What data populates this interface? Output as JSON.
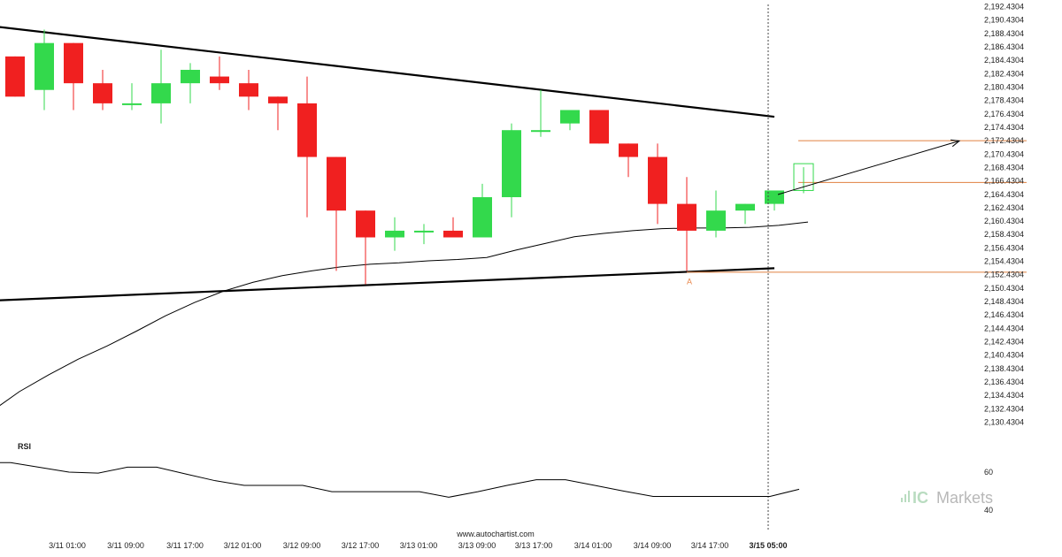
{
  "chart_data": {
    "type": "candlestick",
    "price_axis": {
      "ylim": [
        2130.4304,
        2192.4304
      ],
      "tick_labels": [
        "2,192.4304",
        "2,190.4304",
        "2,188.4304",
        "2,186.4304",
        "2,184.4304",
        "2,182.4304",
        "2,180.4304",
        "2,178.4304",
        "2,176.4304",
        "2,174.4304",
        "2,172.4304",
        "2,170.4304",
        "2,168.4304",
        "2,166.4304",
        "2,164.4304",
        "2,162.4304",
        "2,160.4304",
        "2,158.4304",
        "2,156.4304",
        "2,154.4304",
        "2,152.4304",
        "2,150.4304",
        "2,148.4304",
        "2,146.4304",
        "2,144.4304",
        "2,142.4304",
        "2,140.4304",
        "2,138.4304",
        "2,136.4304",
        "2,134.4304",
        "2,132.4304",
        "2,130.4304"
      ]
    },
    "time_axis": {
      "tick_labels": [
        "3/11 01:00",
        "3/11 09:00",
        "3/11 17:00",
        "3/12 01:00",
        "3/12 09:00",
        "3/12 17:00",
        "3/13 01:00",
        "3/13 09:00",
        "3/13 17:00",
        "3/14 01:00",
        "3/14 09:00",
        "3/14 17:00",
        "3/15 05:00"
      ],
      "highlighted_label": "3/15 05:00"
    },
    "candles": [
      {
        "t": 0,
        "o": 2185,
        "h": 2185,
        "l": 2179,
        "c": 2179
      },
      {
        "t": 1,
        "o": 2180,
        "h": 2189,
        "l": 2177,
        "c": 2187
      },
      {
        "t": 2,
        "o": 2187,
        "h": 2187,
        "l": 2177,
        "c": 2181
      },
      {
        "t": 3,
        "o": 2181,
        "h": 2183,
        "l": 2177,
        "c": 2178
      },
      {
        "t": 4,
        "o": 2178,
        "h": 2181,
        "l": 2177,
        "c": 2178
      },
      {
        "t": 5,
        "o": 2178,
        "h": 2186,
        "l": 2175,
        "c": 2181
      },
      {
        "t": 6,
        "o": 2181,
        "h": 2184,
        "l": 2178,
        "c": 2183
      },
      {
        "t": 7,
        "o": 2182,
        "h": 2185,
        "l": 2180,
        "c": 2181
      },
      {
        "t": 8,
        "o": 2181,
        "h": 2183,
        "l": 2177,
        "c": 2179
      },
      {
        "t": 9,
        "o": 2179,
        "h": 2179,
        "l": 2174,
        "c": 2178
      },
      {
        "t": 10,
        "o": 2178,
        "h": 2182,
        "l": 2161,
        "c": 2170
      },
      {
        "t": 11,
        "o": 2170,
        "h": 2170,
        "l": 2153,
        "c": 2162
      },
      {
        "t": 12,
        "o": 2162,
        "h": 2162,
        "l": 2151,
        "c": 2158
      },
      {
        "t": 13,
        "o": 2158,
        "h": 2161,
        "l": 2156,
        "c": 2159
      },
      {
        "t": 14,
        "o": 2159,
        "h": 2160,
        "l": 2157,
        "c": 2159
      },
      {
        "t": 15,
        "o": 2159,
        "h": 2161,
        "l": 2158,
        "c": 2158
      },
      {
        "t": 16,
        "o": 2158,
        "h": 2166,
        "l": 2158,
        "c": 2164
      },
      {
        "t": 17,
        "o": 2164,
        "h": 2175,
        "l": 2161,
        "c": 2174
      },
      {
        "t": 18,
        "o": 2174,
        "h": 2180,
        "l": 2173,
        "c": 2174
      },
      {
        "t": 19,
        "o": 2175,
        "h": 2177,
        "l": 2174,
        "c": 2177
      },
      {
        "t": 20,
        "o": 2177,
        "h": 2177,
        "l": 2172,
        "c": 2172
      },
      {
        "t": 21,
        "o": 2172,
        "h": 2172,
        "l": 2167,
        "c": 2170
      },
      {
        "t": 22,
        "o": 2170,
        "h": 2172,
        "l": 2160,
        "c": 2163
      },
      {
        "t": 23,
        "o": 2163,
        "h": 2167,
        "l": 2153,
        "c": 2159
      },
      {
        "t": 24,
        "o": 2159,
        "h": 2165,
        "l": 2158,
        "c": 2162
      },
      {
        "t": 25,
        "o": 2162,
        "h": 2163,
        "l": 2160,
        "c": 2163
      },
      {
        "t": 26,
        "o": 2163,
        "h": 2165,
        "l": 2162,
        "c": 2165
      }
    ],
    "forecast_box": {
      "t": 27,
      "low": 2165,
      "high": 2169
    },
    "ma_line": [
      [
        -1,
        2131.9
      ],
      [
        0,
        2135
      ],
      [
        1,
        2137.5
      ],
      [
        2,
        2139.8
      ],
      [
        3,
        2141.8
      ],
      [
        4,
        2144
      ],
      [
        5,
        2146.3
      ],
      [
        6,
        2148.3
      ],
      [
        7,
        2150
      ],
      [
        8,
        2151.3
      ],
      [
        9,
        2152.3
      ],
      [
        10,
        2153
      ],
      [
        11,
        2153.6
      ],
      [
        12,
        2154
      ],
      [
        13,
        2154.2
      ],
      [
        14,
        2154.5
      ],
      [
        15,
        2154.7
      ],
      [
        16,
        2155
      ],
      [
        17,
        2156.1
      ],
      [
        18,
        2157.1
      ],
      [
        19,
        2158.1
      ],
      [
        20,
        2158.6
      ],
      [
        21,
        2159
      ],
      [
        22,
        2159.3
      ],
      [
        23,
        2159.4
      ],
      [
        24,
        2159.4
      ],
      [
        25,
        2159.5
      ],
      [
        26,
        2159.8
      ],
      [
        27,
        2160.3
      ]
    ],
    "pattern_lines": {
      "upper": {
        "from": [
          -1,
          2189.7
        ],
        "to": [
          26,
          2176
        ]
      },
      "lower": {
        "from": [
          -1,
          2148.5
        ],
        "to": [
          26,
          2153.4
        ]
      }
    },
    "level_lines": {
      "target": 2172.4304,
      "breakout": 2166.2,
      "support": 2152.8
    },
    "forecast_arrow": {
      "from": [
        26,
        2164.4
      ],
      "to": [
        32,
        2172.4
      ]
    },
    "point_label": {
      "text": "A",
      "t": 23,
      "price": 2151.7
    },
    "rsi": {
      "label": "RSI",
      "tick_labels": [
        "60",
        "40"
      ],
      "ylim": [
        38,
        74
      ],
      "values": [
        [
          -1,
          65
        ],
        [
          0,
          65
        ],
        [
          1,
          62.5
        ],
        [
          2,
          60
        ],
        [
          3,
          59.5
        ],
        [
          4,
          62.6
        ],
        [
          5,
          62.6
        ],
        [
          6,
          59
        ],
        [
          7,
          55.5
        ],
        [
          8,
          53
        ],
        [
          9,
          53
        ],
        [
          10,
          53
        ],
        [
          11,
          49.7
        ],
        [
          12,
          49.7
        ],
        [
          13,
          49.7
        ],
        [
          14,
          49.7
        ],
        [
          15,
          46.8
        ],
        [
          16,
          49.7
        ],
        [
          17,
          53
        ],
        [
          18,
          56
        ],
        [
          19,
          56
        ],
        [
          20,
          53
        ],
        [
          21,
          50
        ],
        [
          22,
          47.2
        ],
        [
          23,
          47.2
        ],
        [
          24,
          47.2
        ],
        [
          25,
          47.2
        ],
        [
          26,
          47.2
        ],
        [
          27,
          51
        ]
      ]
    },
    "colors": {
      "bull": "#33d94c",
      "bear": "#f02020",
      "level": "#e08040",
      "line": "#000000",
      "vline": "#444444"
    }
  },
  "footer": {
    "url": "www.autochartist.com"
  },
  "brand": {
    "prefix": "IC",
    "name": "Markets"
  }
}
